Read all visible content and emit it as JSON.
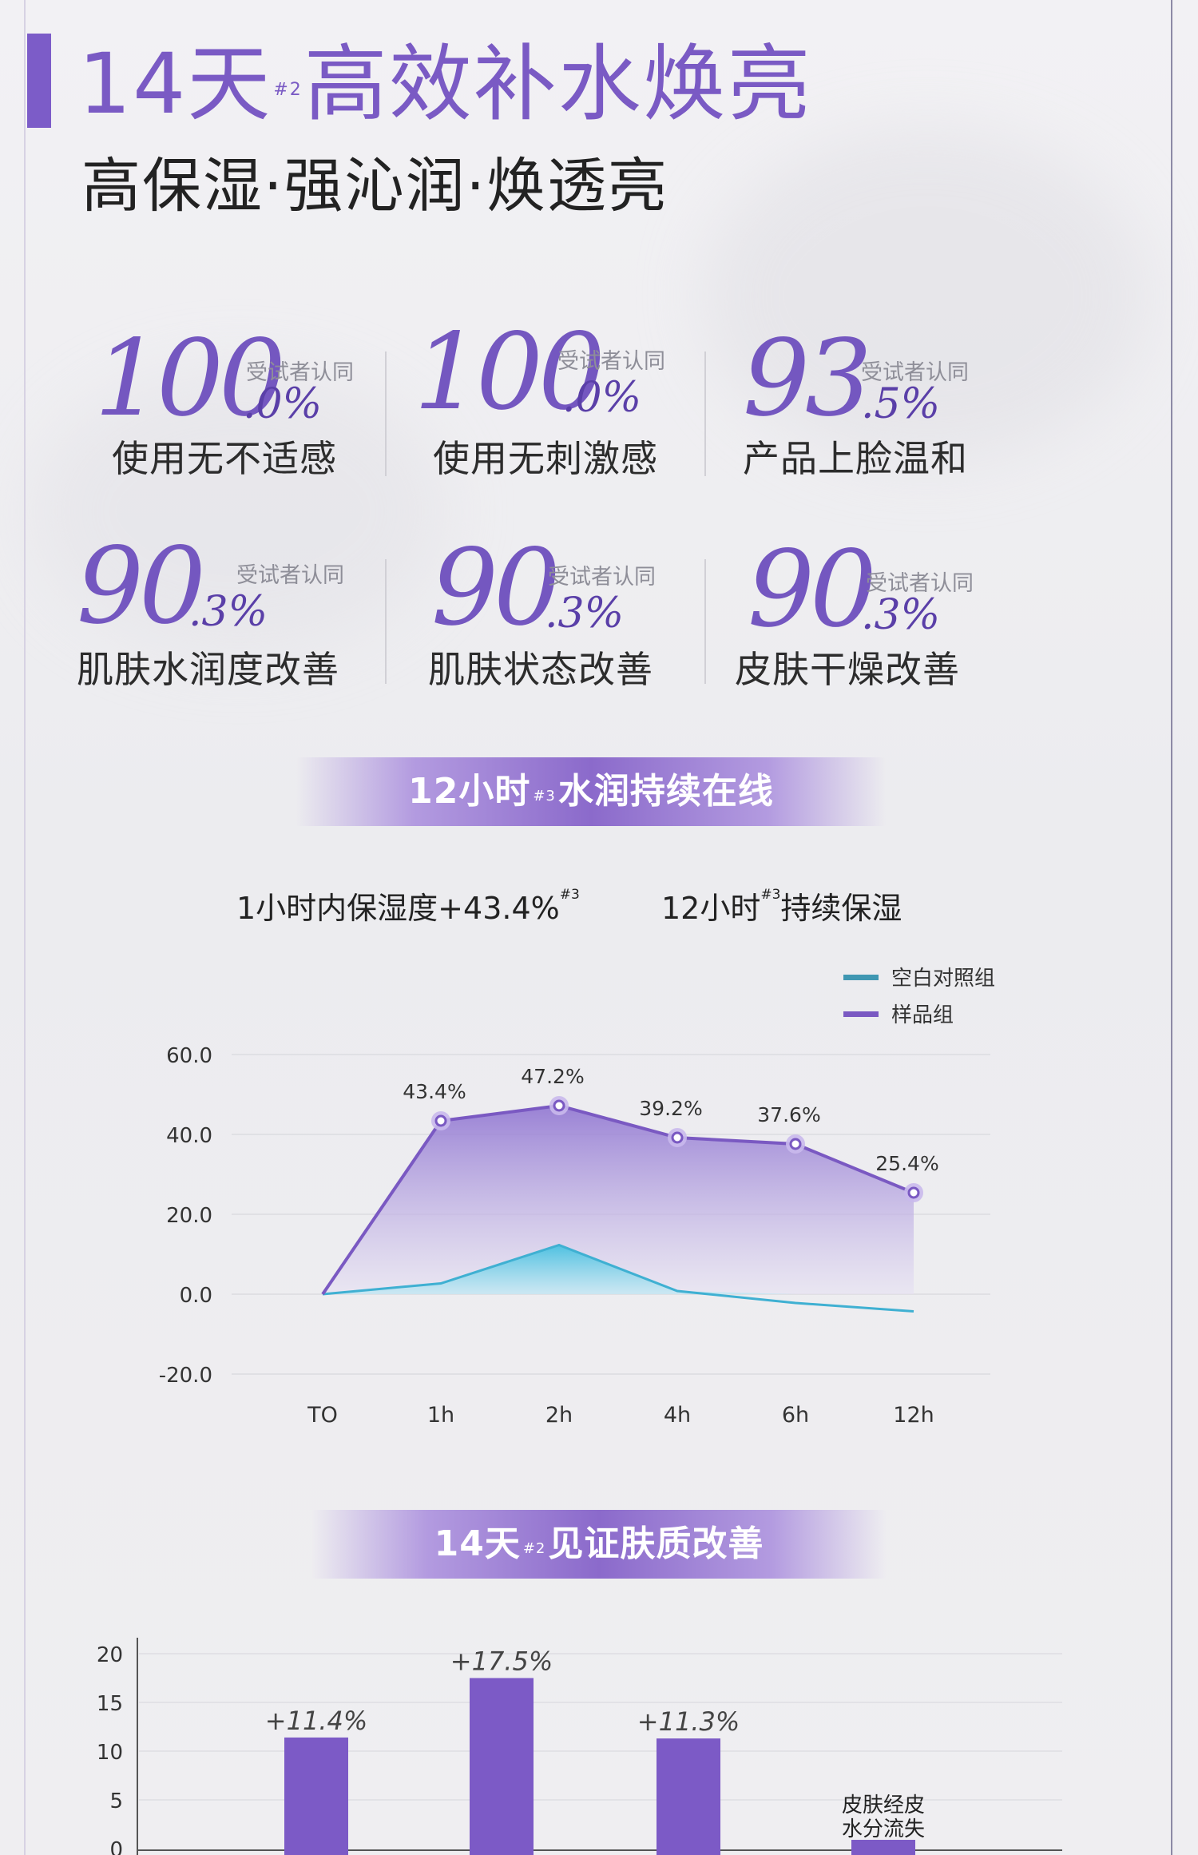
{
  "header": {
    "title_main": "14天",
    "title_sup": "#2",
    "title_rest": "高效补水焕亮",
    "subtitle": "高保湿·强沁润·焕透亮"
  },
  "stats": [
    {
      "big": "100",
      "dec": ".0%",
      "tag": "受试者认同",
      "desc": "使用无不适感"
    },
    {
      "big": "100",
      "dec": ".0%",
      "tag": "受试者认同",
      "desc": "使用无刺激感"
    },
    {
      "big": "93",
      "dec": ".5%",
      "tag": "受试者认同",
      "desc": "产品上脸温和"
    },
    {
      "big": "90",
      "dec": ".3%",
      "tag": "受试者认同",
      "desc": "肌肤水润度改善"
    },
    {
      "big": "90",
      "dec": ".3%",
      "tag": "受试者认同",
      "desc": "肌肤状态改善"
    },
    {
      "big": "90",
      "dec": ".3%",
      "tag": "受试者认同",
      "desc": "皮肤干燥改善"
    }
  ],
  "banner1": {
    "pre": "12小时",
    "sup": "#3",
    "post": "水润持续在线"
  },
  "captions": {
    "left_pre": "1小时内保湿度+43.4%",
    "left_sup": "#3",
    "right_pre": "12小时",
    "right_sup": "#3",
    "right_post": "持续保湿"
  },
  "banner2": {
    "pre": "14天",
    "sup": "#2",
    "post": "见证肤质改善"
  },
  "chart_data": [
    {
      "type": "area",
      "categories": [
        "TO",
        "1h",
        "2h",
        "4h",
        "6h",
        "12h"
      ],
      "ylim": [
        -20,
        60
      ],
      "yticks": [
        60,
        40,
        20,
        0,
        -20
      ],
      "ytick_labels": [
        "60.0",
        "40.0",
        "20.0",
        "0.0",
        "-20.0"
      ],
      "legend_position": "top-right",
      "series": [
        {
          "name": "空白对照组",
          "color": "#3f97b2",
          "fill": "#47c0e0",
          "values": [
            0,
            2.7,
            12.3,
            0.8,
            -2.2,
            -4.3
          ],
          "labels": []
        },
        {
          "name": "样品组",
          "color": "#7a59c2",
          "fill": "#8b6fd0",
          "values": [
            0,
            43.4,
            47.2,
            39.2,
            37.6,
            25.4
          ],
          "labels": [
            "",
            "43.4%",
            "47.2%",
            "39.2%",
            "37.6%",
            "25.4%"
          ]
        }
      ]
    },
    {
      "type": "bar",
      "ylim": [
        0,
        20
      ],
      "yticks": [
        20,
        15,
        10,
        5,
        0
      ],
      "ytick_labels": [
        "20",
        "15",
        "10",
        "5",
        "0"
      ],
      "values": [
        11.4,
        17.5,
        11.3,
        0.9
      ],
      "data_labels": [
        "+11.4%",
        "+17.5%",
        "+11.3%",
        ""
      ],
      "annotation": [
        "皮肤经皮",
        "水分流失"
      ],
      "bar_color": "#7c5ac6"
    }
  ]
}
